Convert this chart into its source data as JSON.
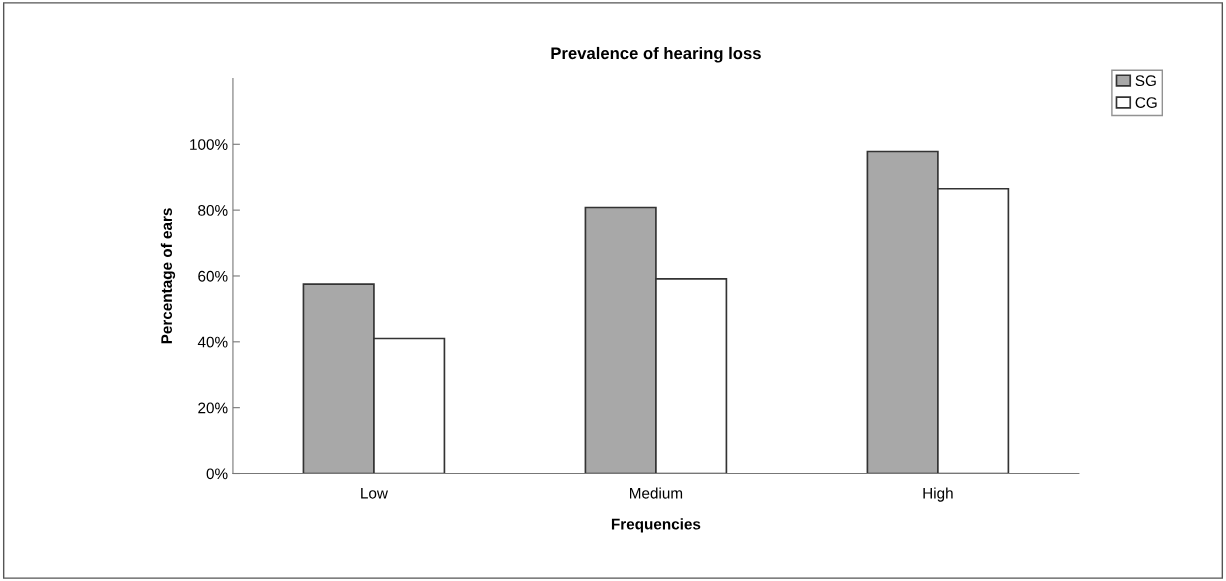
{
  "chart_data": {
    "type": "bar",
    "title": "Prevalence of hearing loss",
    "xlabel": "Frequencies",
    "ylabel": "Percentage of ears",
    "categories": [
      "Low",
      "Medium",
      "High"
    ],
    "series": [
      {
        "name": "SG",
        "color": "#a8a8a8",
        "values": [
          57.5,
          80.8,
          97.8
        ]
      },
      {
        "name": "CG",
        "color": "#ffffff",
        "values": [
          41,
          59.1,
          86.5
        ]
      }
    ],
    "ylim": [
      0,
      120
    ],
    "yticks": [
      {
        "value": 0,
        "label": "0%"
      },
      {
        "value": 20,
        "label": "20%"
      },
      {
        "value": 40,
        "label": "40%"
      },
      {
        "value": 60,
        "label": "60%"
      },
      {
        "value": 80,
        "label": "80%"
      },
      {
        "value": 100,
        "label": "100%"
      }
    ],
    "grid": false,
    "legend": "top right"
  }
}
